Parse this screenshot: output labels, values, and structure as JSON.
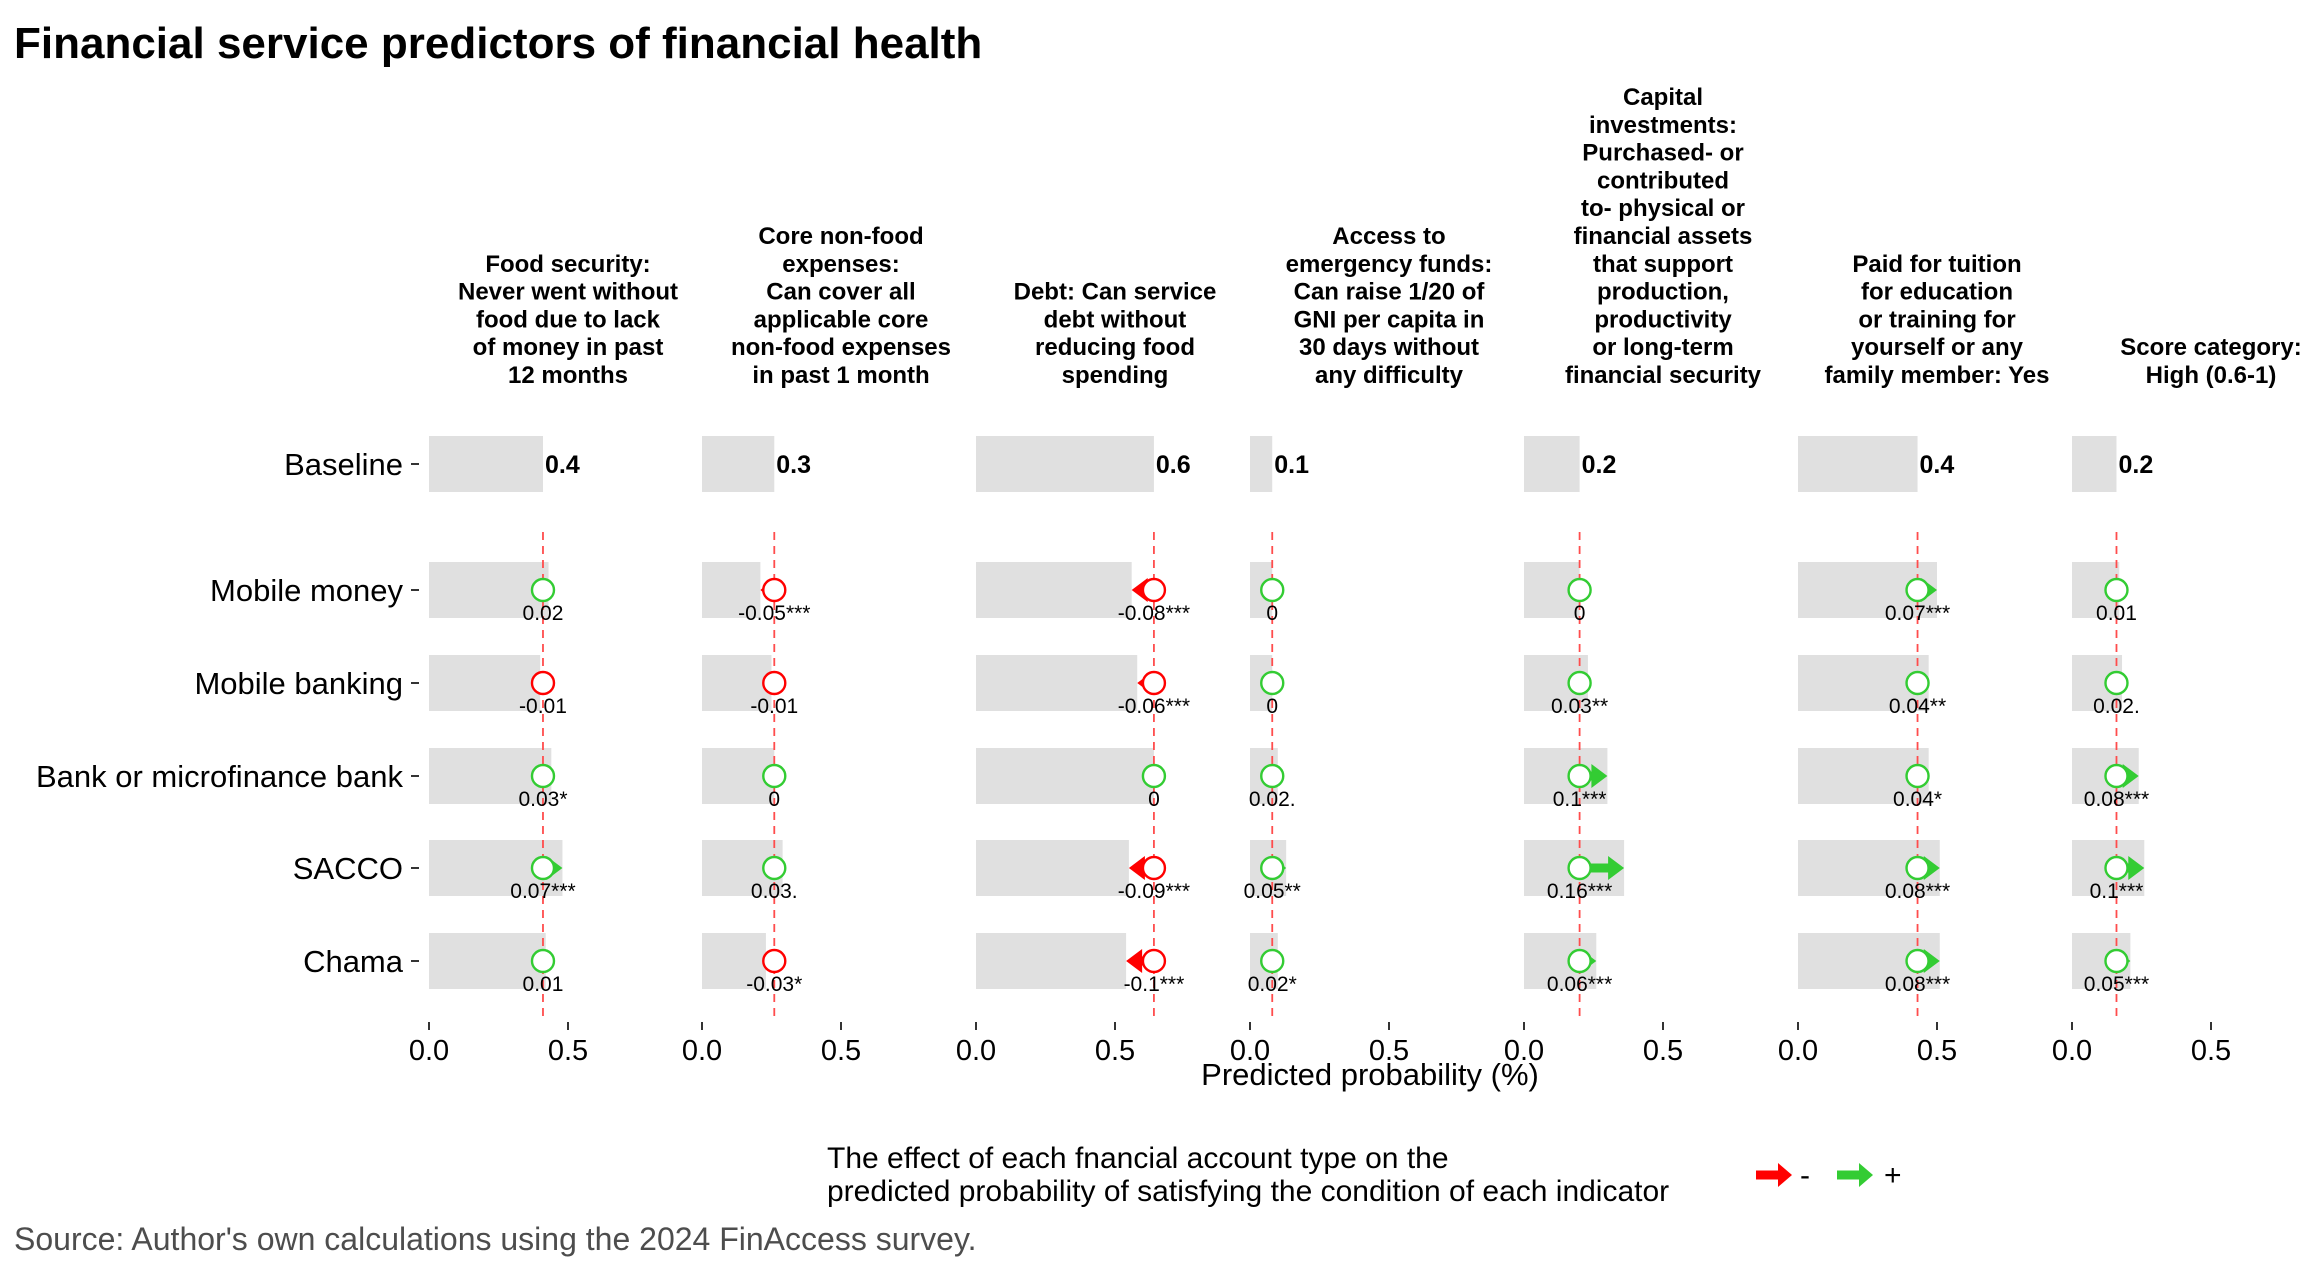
{
  "chart_data": {
    "type": "bar",
    "title": "Financial service predictors of financial health",
    "xlabel": "Predicted probability (%)",
    "xlim": [
      0,
      0.5
    ],
    "xticks": [
      "0.0",
      "0.5"
    ],
    "baseline_label": "Baseline",
    "categories": [
      "Mobile money",
      "Mobile banking",
      "Bank or microfinance bank",
      "SACCO",
      "Chama"
    ],
    "panels": [
      {
        "title": [
          "Food security:",
          "Never went without",
          "food due to lack",
          "of money in past",
          "12 months"
        ],
        "baseline": 0.41,
        "baseline_label": "0.4",
        "effects": [
          0.02,
          -0.01,
          0.03,
          0.07,
          0.01
        ],
        "labels": [
          "0.02",
          "-0.01",
          "0.03*",
          "0.07***",
          "0.01"
        ]
      },
      {
        "title": [
          "Core non-food",
          "expenses:",
          "Can cover all",
          "applicable core",
          "non-food expenses",
          "in past 1 month"
        ],
        "baseline": 0.26,
        "baseline_label": "0.3",
        "effects": [
          -0.05,
          -0.01,
          0,
          0.03,
          -0.03
        ],
        "labels": [
          "-0.05***",
          "-0.01",
          "0",
          "0.03.",
          "-0.03*"
        ]
      },
      {
        "title": [
          "Debt: Can service",
          "debt without",
          "reducing food",
          "spending"
        ],
        "baseline": 0.64,
        "baseline_label": "0.6",
        "effects": [
          -0.08,
          -0.06,
          0,
          -0.09,
          -0.1
        ],
        "labels": [
          "-0.08***",
          "-0.06***",
          "0",
          "-0.09***",
          "-0.1***"
        ]
      },
      {
        "title": [
          "Access to",
          "emergency funds:",
          "Can raise 1/20 of",
          "GNI per capita in",
          "30 days without",
          "any difficulty"
        ],
        "baseline": 0.08,
        "baseline_label": "0.1",
        "effects": [
          0,
          0,
          0.02,
          0.05,
          0.02
        ],
        "labels": [
          "0",
          "0",
          "0.02.",
          "0.05**",
          "0.02*"
        ]
      },
      {
        "title": [
          "Capital",
          "investments:",
          "Purchased- or",
          "contributed",
          "to- physical or",
          "financial assets",
          "that support",
          "production,",
          "productivity",
          "or long-term",
          "financial security"
        ],
        "baseline": 0.2,
        "baseline_label": "0.2",
        "effects": [
          0,
          0.03,
          0.1,
          0.16,
          0.06
        ],
        "labels": [
          "0",
          "0.03**",
          "0.1***",
          "0.16***",
          "0.06***"
        ]
      },
      {
        "title": [
          "Paid for tuition",
          "for education",
          "or training for",
          "yourself or any",
          "family member: Yes"
        ],
        "baseline": 0.43,
        "baseline_label": "0.4",
        "effects": [
          0.07,
          0.04,
          0.04,
          0.08,
          0.08
        ],
        "labels": [
          "0.07***",
          "0.04**",
          "0.04*",
          "0.08***",
          "0.08***"
        ]
      },
      {
        "title": [
          "Score category:",
          "High (0.6-1)"
        ],
        "baseline": 0.16,
        "baseline_label": "0.2",
        "effects": [
          0.01,
          0.02,
          0.08,
          0.1,
          0.05
        ],
        "labels": [
          "0.01",
          "0.02.",
          "0.08***",
          "0.1***",
          "0.05***"
        ]
      }
    ],
    "legend": {
      "text": [
        "The effect of each fnancial account type on the",
        "predicted probability of satisfying the condition of each indicator"
      ],
      "negative_label": "-",
      "positive_label": "+",
      "placement": "bottom"
    },
    "source": "Source: Author's own calculations using the 2024 FinAccess survey.",
    "colors": {
      "bar": "#e0e0e0",
      "negative": "#ff0000",
      "positive": "#33cc33",
      "baseline_line": "#ff4d4d",
      "text": "#000000",
      "source": "#4d4d4d"
    }
  }
}
